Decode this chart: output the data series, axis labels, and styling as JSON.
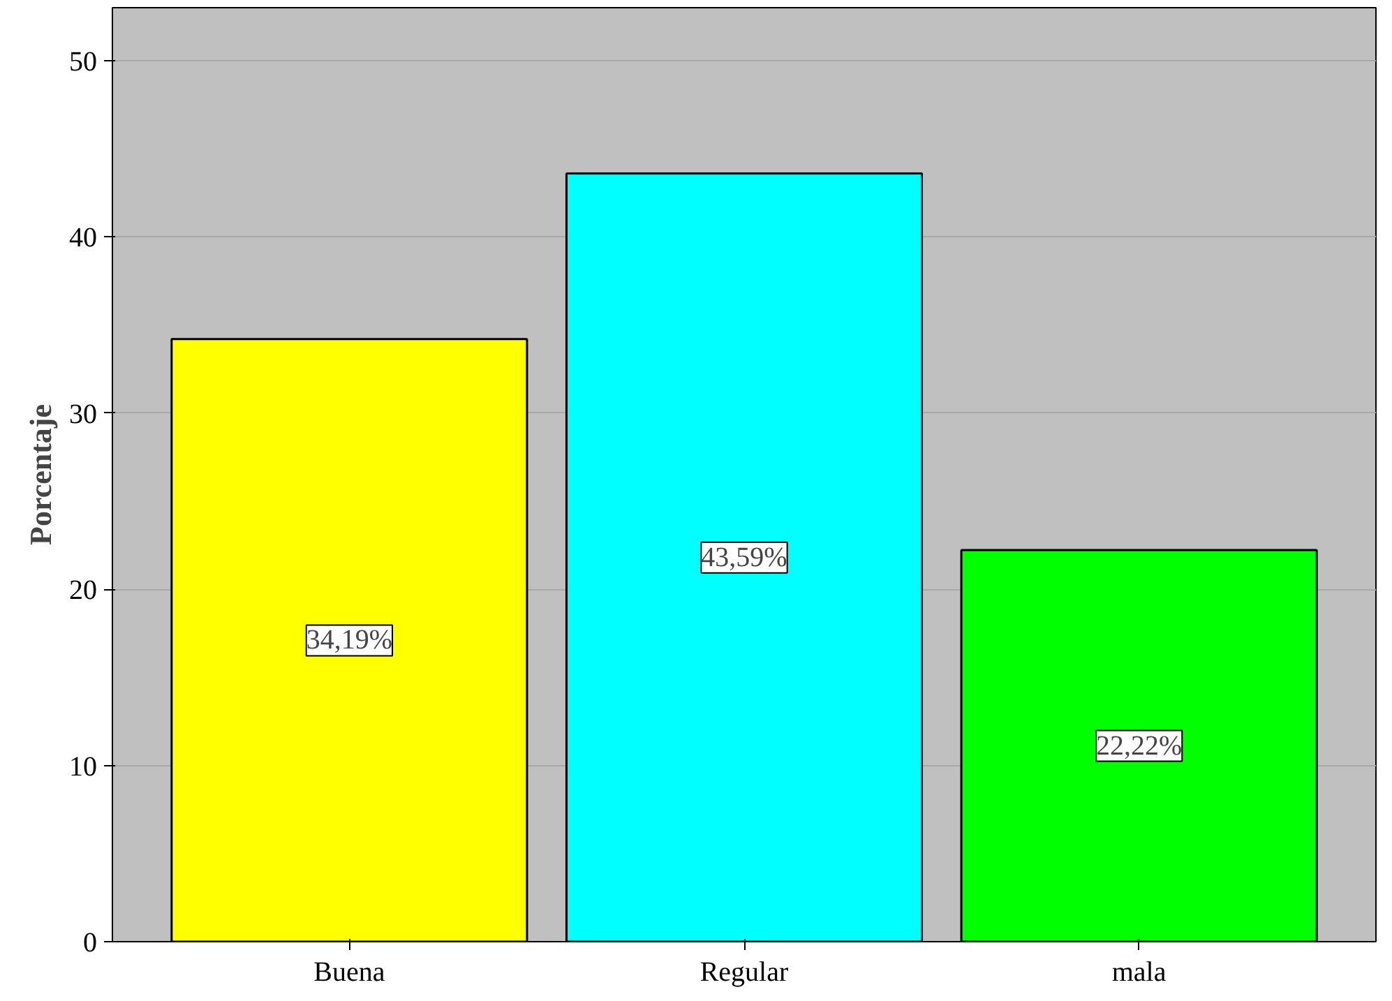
{
  "chart_data": {
    "type": "bar",
    "ylabel": "Porcentaje",
    "categories": [
      "Buena",
      "Regular",
      "mala"
    ],
    "values": [
      34.19,
      43.59,
      22.22
    ],
    "colors": [
      "#ffff00",
      "#00ffff",
      "#00ff00"
    ],
    "value_labels": [
      "34,19%",
      "43,59%",
      "22,22%"
    ],
    "ylim": [
      0,
      53
    ],
    "yticks": [
      0,
      10,
      20,
      30,
      40,
      50
    ],
    "grid": "y"
  }
}
